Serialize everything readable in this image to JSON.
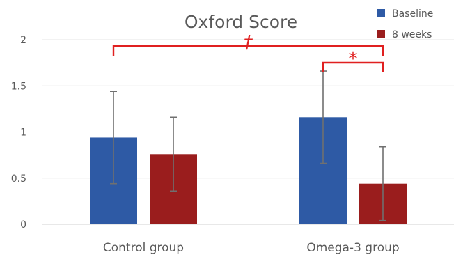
{
  "chart_data": {
    "type": "bar",
    "title": "Oxford Score",
    "xlabel": "",
    "ylabel": "",
    "categories": [
      "Control group",
      "Omega-3 group"
    ],
    "ylim": [
      0,
      2
    ],
    "yticks": [
      "0",
      "0.5",
      "1",
      "1.5",
      "2"
    ],
    "grid": true,
    "legend_position": "top-right",
    "series": [
      {
        "name": "Baseline",
        "color": "#2e5aa5",
        "values": [
          0.94,
          1.16
        ],
        "error": [
          0.5,
          0.5
        ]
      },
      {
        "name": "8 weeks",
        "color": "#9a1d1d",
        "values": [
          0.76,
          0.44
        ],
        "error": [
          0.4,
          0.4
        ]
      }
    ],
    "annotations": [
      {
        "label": "†",
        "color": "#e02020",
        "from": "Control group · Baseline",
        "to": "Omega-3 group · 8 weeks"
      },
      {
        "label": "*",
        "color": "#e02020",
        "from": "Omega-3 group · Baseline",
        "to": "Omega-3 group · 8 weeks"
      }
    ]
  }
}
